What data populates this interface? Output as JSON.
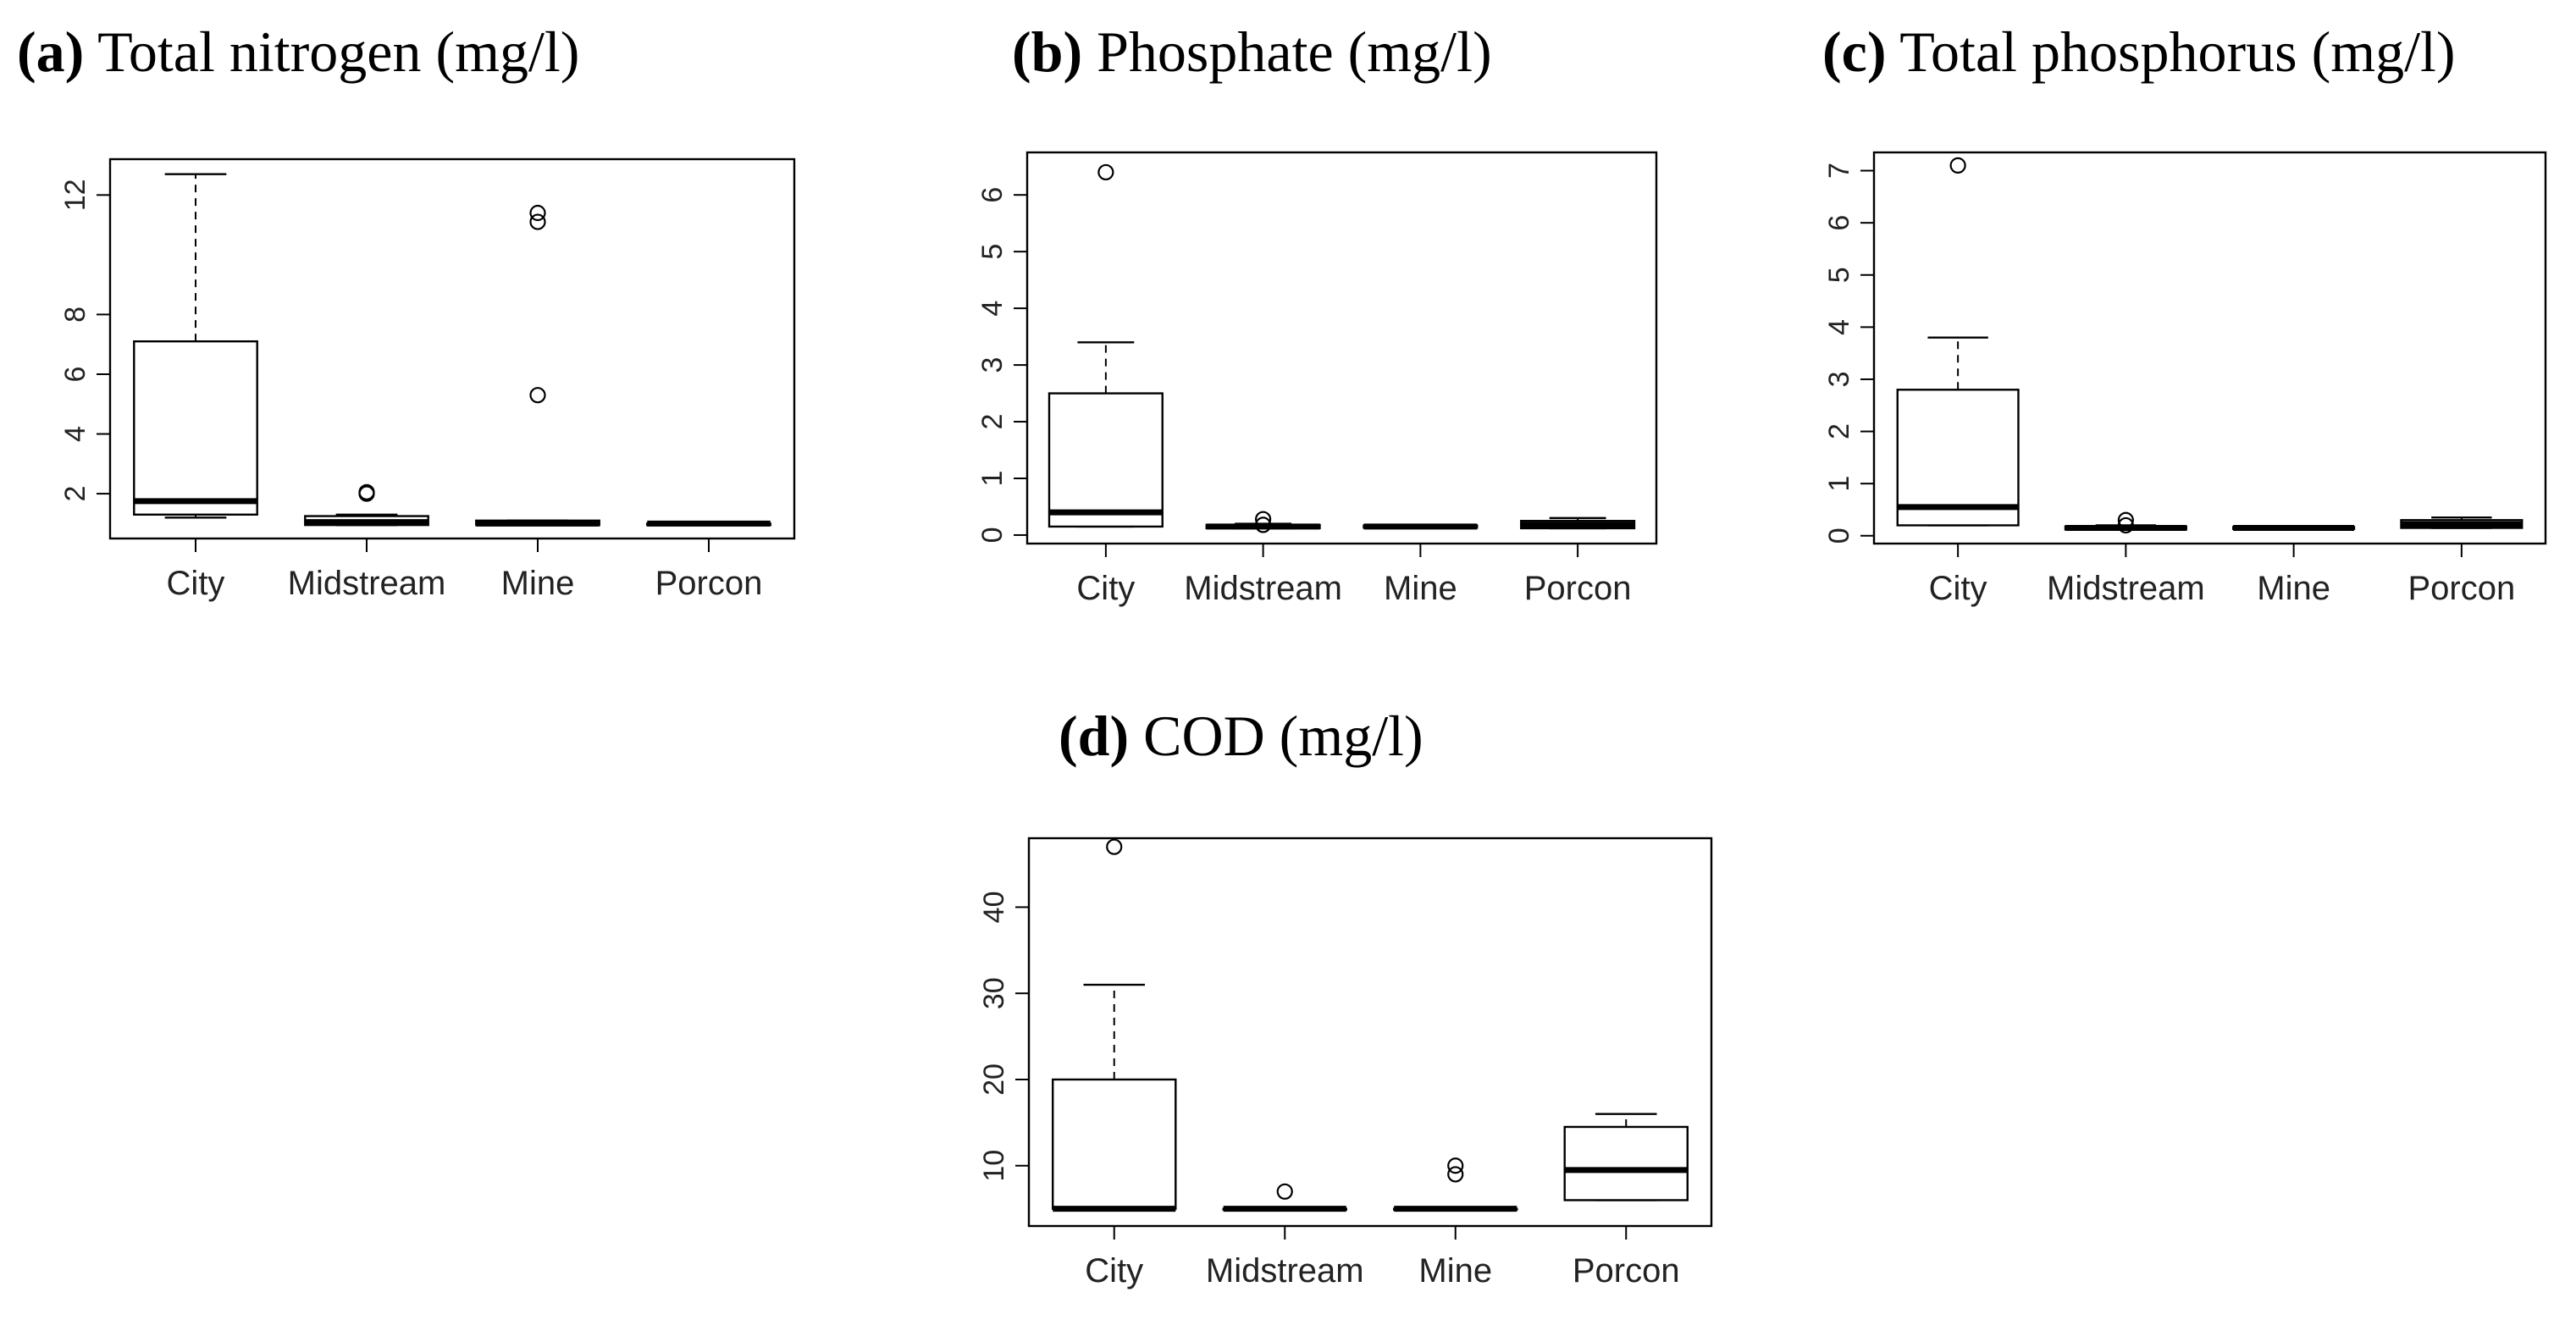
{
  "colors": {
    "box_fill": "#ffffff",
    "ink": "#000000"
  },
  "chart_data": [
    {
      "type": "boxplot",
      "label": "(a)",
      "title": "Total nitrogen (mg/l)",
      "xlabel": "",
      "ylabel": "",
      "categories": [
        "City",
        "Midstream",
        "Mine",
        "Porcon"
      ],
      "ylim": [
        0.5,
        13.2
      ],
      "yticks": [
        2,
        4,
        6,
        8,
        12
      ],
      "ytick_labels": [
        "2",
        "4",
        "6",
        "8",
        "12"
      ],
      "boxes": [
        {
          "whisker_low": 1.2,
          "q1": 1.3,
          "median": 1.75,
          "q3": 7.1,
          "whisker_high": 12.7,
          "outliers": []
        },
        {
          "whisker_low": 0.95,
          "q1": 0.95,
          "median": 1.05,
          "q3": 1.25,
          "whisker_high": 1.3,
          "outliers": [
            2.0,
            2.05
          ]
        },
        {
          "whisker_low": 0.95,
          "q1": 0.95,
          "median": 1.0,
          "q3": 1.1,
          "whisker_high": 1.1,
          "outliers": [
            5.3,
            11.1,
            11.4
          ]
        },
        {
          "whisker_low": 0.95,
          "q1": 0.95,
          "median": 1.0,
          "q3": 1.0,
          "whisker_high": 1.05,
          "outliers": []
        }
      ]
    },
    {
      "type": "boxplot",
      "label": "(b)",
      "title": "Phosphate (mg/l)",
      "xlabel": "",
      "ylabel": "",
      "categories": [
        "City",
        "Midstream",
        "Mine",
        "Porcon"
      ],
      "ylim": [
        -0.15,
        6.75
      ],
      "yticks": [
        0,
        1,
        2,
        3,
        4,
        5,
        6
      ],
      "ytick_labels": [
        "0",
        "1",
        "2",
        "3",
        "4",
        "5",
        "6"
      ],
      "boxes": [
        {
          "whisker_low": 0.15,
          "q1": 0.15,
          "median": 0.4,
          "q3": 2.5,
          "whisker_high": 3.4,
          "outliers": [
            6.4
          ]
        },
        {
          "whisker_low": 0.12,
          "q1": 0.12,
          "median": 0.15,
          "q3": 0.18,
          "whisker_high": 0.2,
          "outliers": [
            0.18,
            0.28
          ]
        },
        {
          "whisker_low": 0.13,
          "q1": 0.13,
          "median": 0.15,
          "q3": 0.17,
          "whisker_high": 0.17,
          "outliers": []
        },
        {
          "whisker_low": 0.12,
          "q1": 0.12,
          "median": 0.18,
          "q3": 0.25,
          "whisker_high": 0.3,
          "outliers": []
        }
      ]
    },
    {
      "type": "boxplot",
      "label": "(c)",
      "title": "Total phosphorus (mg/l)",
      "xlabel": "",
      "ylabel": "",
      "categories": [
        "City",
        "Midstream",
        "Mine",
        "Porcon"
      ],
      "ylim": [
        -0.15,
        7.35
      ],
      "yticks": [
        0,
        1,
        2,
        3,
        4,
        5,
        6,
        7
      ],
      "ytick_labels": [
        "0",
        "1",
        "2",
        "3",
        "4",
        "5",
        "6",
        "7"
      ],
      "boxes": [
        {
          "whisker_low": 0.2,
          "q1": 0.2,
          "median": 0.55,
          "q3": 2.8,
          "whisker_high": 3.8,
          "outliers": [
            7.1
          ]
        },
        {
          "whisker_low": 0.12,
          "q1": 0.12,
          "median": 0.15,
          "q3": 0.18,
          "whisker_high": 0.2,
          "outliers": [
            0.2,
            0.3
          ]
        },
        {
          "whisker_low": 0.13,
          "q1": 0.13,
          "median": 0.15,
          "q3": 0.17,
          "whisker_high": 0.17,
          "outliers": []
        },
        {
          "whisker_low": 0.15,
          "q1": 0.15,
          "median": 0.22,
          "q3": 0.3,
          "whisker_high": 0.35,
          "outliers": []
        }
      ]
    },
    {
      "type": "boxplot",
      "label": "(d)",
      "title": "COD (mg/l)",
      "xlabel": "",
      "ylabel": "",
      "categories": [
        "City",
        "Midstream",
        "Mine",
        "Porcon"
      ],
      "ylim": [
        3,
        48
      ],
      "yticks": [
        10,
        20,
        30,
        40
      ],
      "ytick_labels": [
        "10",
        "20",
        "30",
        "40"
      ],
      "boxes": [
        {
          "whisker_low": 5,
          "q1": 5,
          "median": 5,
          "q3": 20,
          "whisker_high": 31,
          "outliers": [
            47
          ]
        },
        {
          "whisker_low": 5,
          "q1": 5,
          "median": 5,
          "q3": 5,
          "whisker_high": 5,
          "outliers": [
            7
          ]
        },
        {
          "whisker_low": 5,
          "q1": 5,
          "median": 5,
          "q3": 5,
          "whisker_high": 5,
          "outliers": [
            9,
            10
          ]
        },
        {
          "whisker_low": 6,
          "q1": 6,
          "median": 9.5,
          "q3": 14.5,
          "whisker_high": 16,
          "outliers": []
        }
      ]
    }
  ]
}
